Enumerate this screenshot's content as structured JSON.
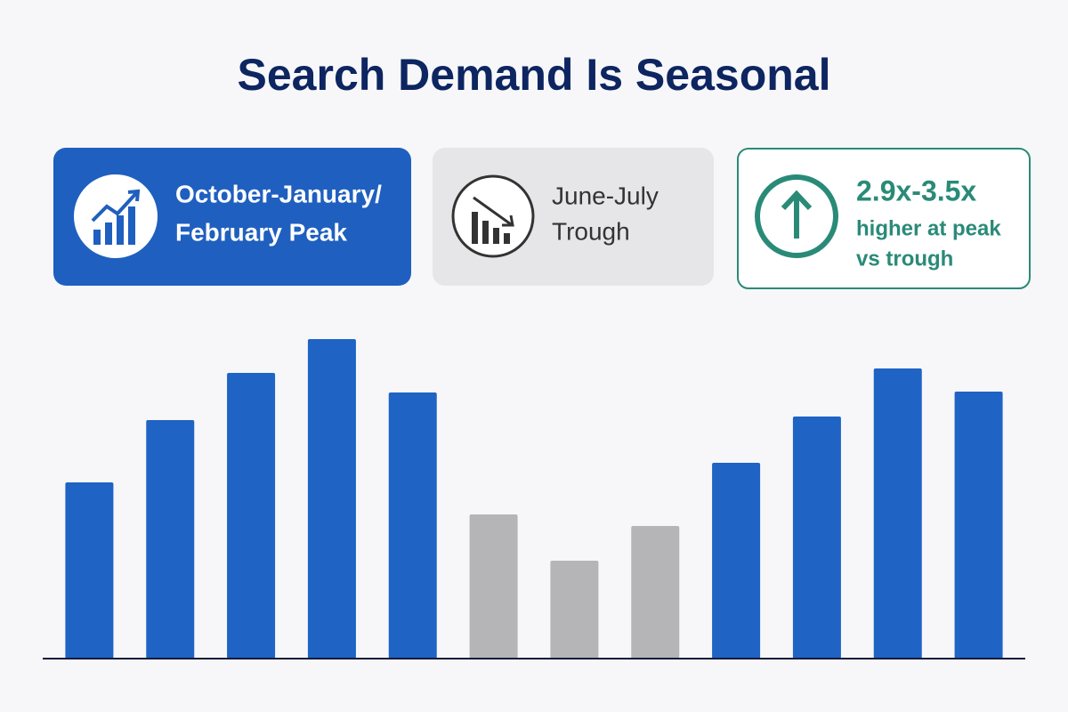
{
  "title": "Search Demand Is Seasonal",
  "cards": [
    {
      "lines": [
        "October-January/",
        "February Peak"
      ]
    },
    {
      "lines": [
        "June-July",
        "Trough"
      ]
    },
    {
      "lines": [
        "2.9x-3.5x",
        "higher at peak",
        "vs trough"
      ]
    }
  ],
  "chart_data": {
    "type": "bar",
    "categories": [
      null,
      null,
      null,
      null,
      null,
      null,
      null,
      null,
      null,
      null,
      null,
      null
    ],
    "values": [
      198,
      268,
      321,
      359,
      299,
      162,
      110,
      149,
      220,
      272,
      326,
      300
    ],
    "colors": [
      "#1f63c4",
      "#1f63c4",
      "#1f63c4",
      "#1f63c4",
      "#1f63c4",
      "#b5b5b8",
      "#b5b5b8",
      "#b5b5b8",
      "#1f63c4",
      "#1f63c4",
      "#1f63c4",
      "#1f63c4"
    ],
    "ylim": [
      0,
      380
    ]
  }
}
